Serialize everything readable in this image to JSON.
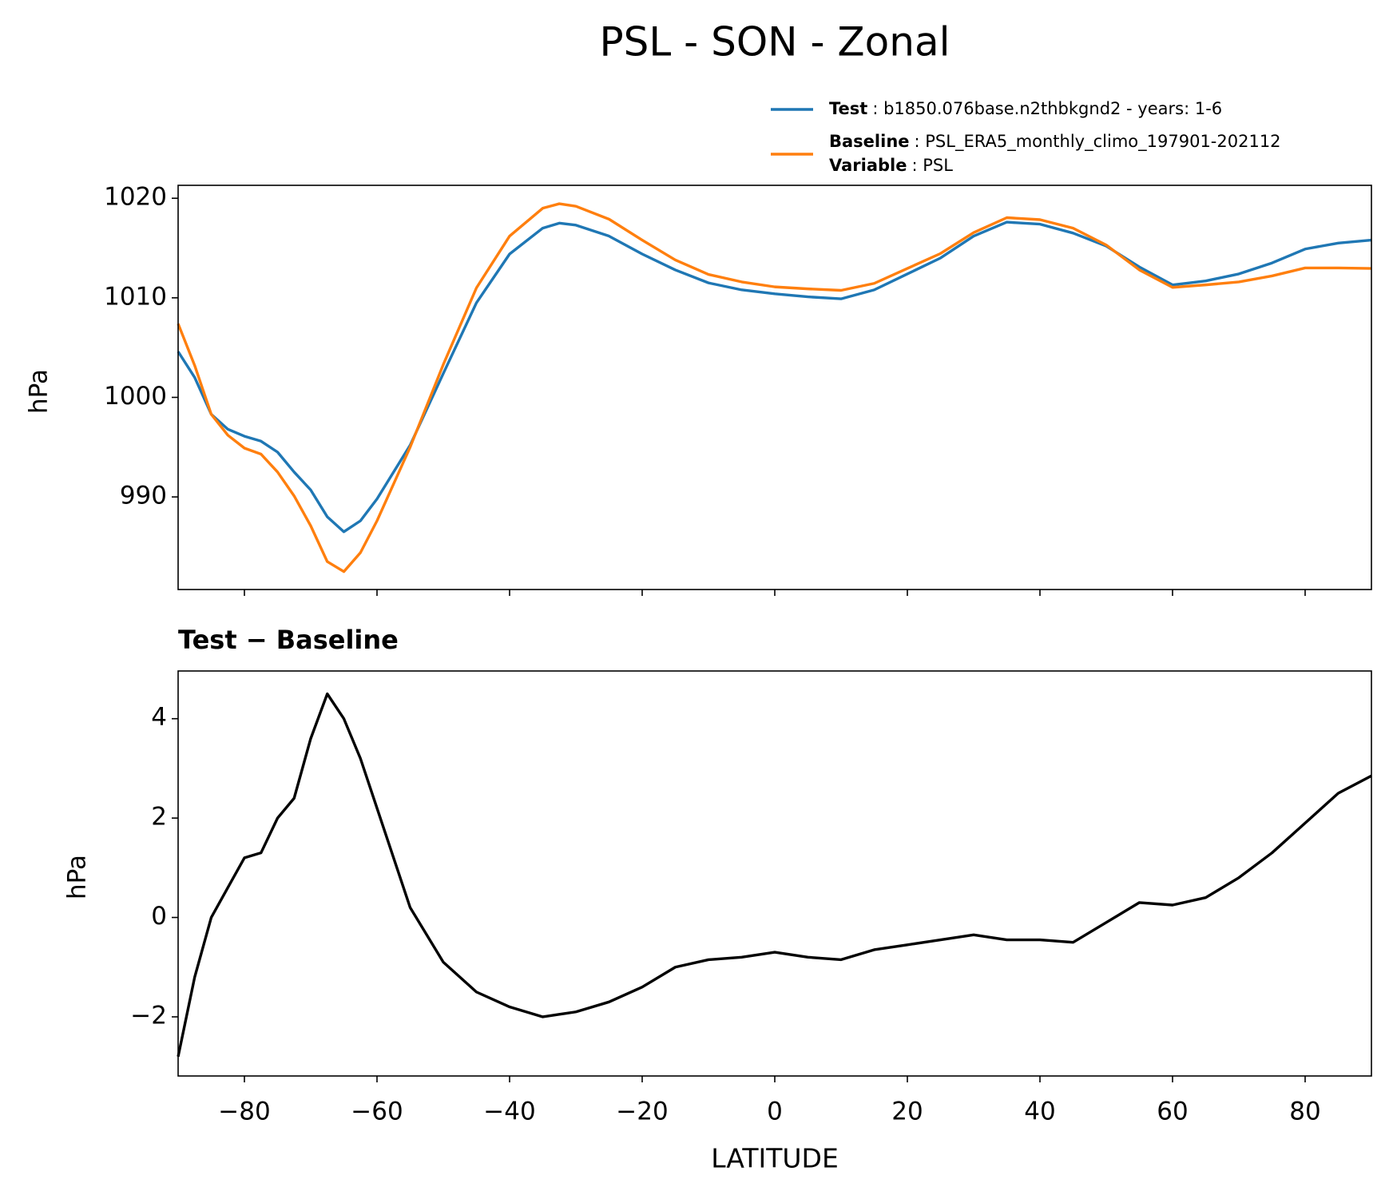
{
  "chart_data": [
    {
      "type": "line",
      "title": "PSL - SON - Zonal",
      "ylabel": "hPa",
      "x": [
        -90,
        -87.5,
        -85,
        -82.5,
        -80,
        -77.5,
        -75,
        -72.5,
        -70,
        -67.5,
        -65,
        -62.5,
        -60,
        -55,
        -50,
        -45,
        -40,
        -35,
        -32.5,
        -30,
        -25,
        -20,
        -15,
        -10,
        -5,
        0,
        5,
        10,
        15,
        20,
        25,
        30,
        35,
        40,
        45,
        50,
        55,
        60,
        65,
        70,
        75,
        80,
        85,
        90
      ],
      "series": [
        {
          "name": "Test",
          "label": ": b1850.076base.n2thbkgnd2 - years: 1-6",
          "color": "#1f77b4",
          "values": [
            1004.6,
            1002.0,
            998.3,
            996.8,
            996.1,
            995.6,
            994.5,
            992.5,
            990.7,
            988.0,
            986.5,
            987.6,
            989.8,
            995.2,
            1002.4,
            1009.5,
            1014.4,
            1017.0,
            1017.5,
            1017.3,
            1016.2,
            1014.4,
            1012.8,
            1011.5,
            1010.8,
            1010.4,
            1010.1,
            1009.9,
            1010.8,
            1012.4,
            1014.0,
            1016.2,
            1017.6,
            1017.4,
            1016.5,
            1015.2,
            1013.1,
            1011.3,
            1011.7,
            1012.4,
            1013.5,
            1014.9,
            1015.5,
            1015.8
          ]
        },
        {
          "name": "Baseline",
          "label": ": PSL_ERA5_monthly_climo_197901-202112",
          "color": "#ff7f0e",
          "values": [
            1007.4,
            1003.2,
            998.3,
            996.2,
            994.9,
            994.3,
            992.5,
            990.1,
            987.1,
            983.5,
            982.5,
            984.4,
            987.6,
            995.0,
            1003.3,
            1011.0,
            1016.2,
            1019.0,
            1019.45,
            1019.2,
            1017.9,
            1015.8,
            1013.8,
            1012.35,
            1011.6,
            1011.1,
            1010.9,
            1010.75,
            1011.45,
            1012.95,
            1014.45,
            1016.55,
            1018.05,
            1017.85,
            1017.0,
            1015.3,
            1012.8,
            1011.05,
            1011.3,
            1011.6,
            1012.2,
            1013.0,
            1013.0,
            1012.95
          ]
        }
      ],
      "legend_extra": {
        "name": "Variable",
        "label": ": PSL"
      },
      "xlim": [
        -90,
        90
      ],
      "xticks": [
        -80,
        -60,
        -40,
        -20,
        0,
        20,
        40,
        60,
        80
      ],
      "xtick_labels": false,
      "ylim": [
        980.7,
        1021.3
      ],
      "yticks": [
        990,
        1000,
        1010,
        1020
      ]
    },
    {
      "type": "line",
      "title": "Test − Baseline",
      "ylabel": "hPa",
      "xlabel": "LATITUDE",
      "color": "#000000",
      "x": [
        -90,
        -87.5,
        -85,
        -82.5,
        -80,
        -77.5,
        -75,
        -72.5,
        -70,
        -67.5,
        -65,
        -62.5,
        -60,
        -55,
        -50,
        -45,
        -40,
        -35,
        -32.5,
        -30,
        -25,
        -20,
        -15,
        -10,
        -5,
        0,
        5,
        10,
        15,
        20,
        25,
        30,
        35,
        40,
        45,
        50,
        55,
        60,
        65,
        70,
        75,
        80,
        85,
        90
      ],
      "values": [
        -2.8,
        -1.2,
        0.0,
        0.6,
        1.2,
        1.3,
        2.0,
        2.4,
        3.6,
        4.5,
        4.0,
        3.2,
        2.2,
        0.2,
        -0.9,
        -1.5,
        -1.8,
        -2.0,
        -1.95,
        -1.9,
        -1.7,
        -1.4,
        -1.0,
        -0.85,
        -0.8,
        -0.7,
        -0.8,
        -0.85,
        -0.65,
        -0.55,
        -0.45,
        -0.35,
        -0.45,
        -0.45,
        -0.5,
        -0.1,
        0.3,
        0.25,
        0.4,
        0.8,
        1.3,
        1.9,
        2.5,
        2.85
      ],
      "xlim": [
        -90,
        90
      ],
      "xticks": [
        {
          "value": -80,
          "label": "−80"
        },
        {
          "value": -60,
          "label": "−60"
        },
        {
          "value": -40,
          "label": "−40"
        },
        {
          "value": -20,
          "label": "−20"
        },
        0,
        20,
        40,
        60,
        80
      ],
      "ylim": [
        -3.19,
        4.96
      ],
      "yticks": [
        {
          "value": -2,
          "label": "−2"
        },
        0,
        2,
        4
      ]
    }
  ]
}
